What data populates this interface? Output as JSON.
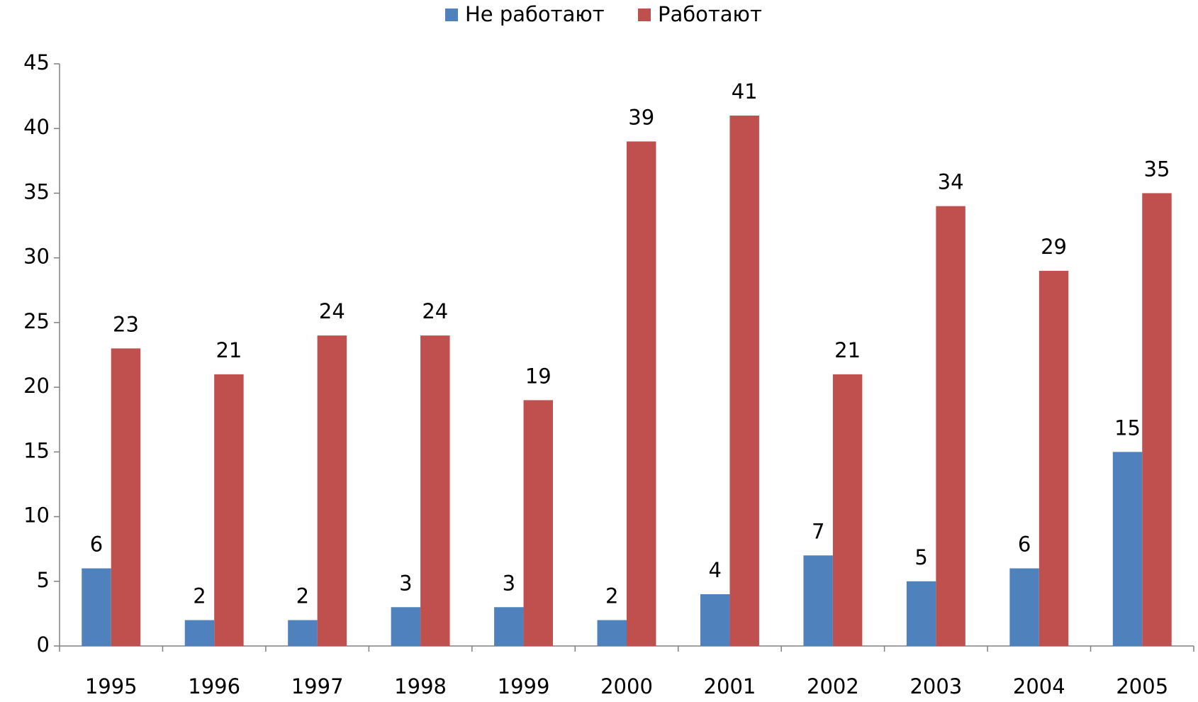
{
  "chart_data": {
    "type": "bar",
    "categories": [
      "1995",
      "1996",
      "1997",
      "1998",
      "1999",
      "2000",
      "2001",
      "2002",
      "2003",
      "2004",
      "2005"
    ],
    "series": [
      {
        "name": "Не работают",
        "color": "#4f81bd",
        "values": [
          6,
          2,
          2,
          3,
          3,
          2,
          4,
          7,
          5,
          6,
          15
        ]
      },
      {
        "name": "Работают",
        "color": "#c0504d",
        "values": [
          23,
          21,
          24,
          24,
          19,
          39,
          41,
          21,
          34,
          29,
          35
        ]
      }
    ],
    "ylim": [
      0,
      45
    ],
    "yticks": [
      0,
      5,
      10,
      15,
      20,
      25,
      30,
      35,
      40,
      45
    ],
    "grid": false,
    "legend": "top"
  }
}
